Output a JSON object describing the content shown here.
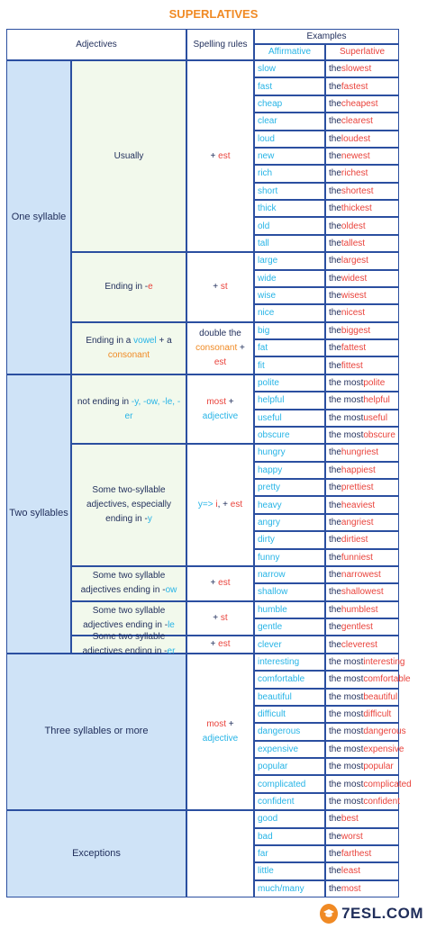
{
  "title": "SUPERLATIVES",
  "headers": {
    "adjectives": "Adjectives",
    "spelling_rules": "Spelling rules",
    "examples": "Examples",
    "affirmative": "Affirmative",
    "superlative": "Superlative"
  },
  "colors": {
    "orange": "#f08a24",
    "red": "#e9433c",
    "blue": "#27b4e6",
    "navy": "#1f2d5a",
    "border": "#2b4fa0",
    "left_col": "#cfe3f7",
    "rule_col": "#f2f9ec"
  },
  "groups": [
    {
      "name": "One syllable",
      "rows": [
        {
          "desc": [
            {
              "t": "Usually",
              "c": "dark"
            }
          ],
          "rule": [
            {
              "t": "+ ",
              "c": "dark"
            },
            {
              "t": "est",
              "c": "red"
            }
          ],
          "examples": [
            {
              "aff": "slow",
              "pre": "the ",
              "base": "slow",
              "suf": "est"
            },
            {
              "aff": "fast",
              "pre": "the ",
              "base": "fast",
              "suf": "est"
            },
            {
              "aff": "cheap",
              "pre": "the ",
              "base": "cheap",
              "suf": "est"
            },
            {
              "aff": "clear",
              "pre": "the ",
              "base": "clear",
              "suf": "est"
            },
            {
              "aff": "loud",
              "pre": "the ",
              "base": "loud",
              "suf": "est"
            },
            {
              "aff": "new",
              "pre": "the ",
              "base": "new",
              "suf": "est"
            },
            {
              "aff": "rich",
              "pre": "the ",
              "base": "rich",
              "suf": "est"
            },
            {
              "aff": "short",
              "pre": "the ",
              "base": "short",
              "suf": "est"
            },
            {
              "aff": "thick",
              "pre": "the ",
              "base": "thick",
              "suf": "est"
            },
            {
              "aff": "old",
              "pre": "the ",
              "base": "old",
              "suf": "est"
            },
            {
              "aff": "tall",
              "pre": "the ",
              "base": "tall",
              "suf": "est"
            }
          ]
        },
        {
          "desc": [
            {
              "t": "Ending in -",
              "c": "dark"
            },
            {
              "t": "e",
              "c": "red"
            }
          ],
          "rule": [
            {
              "t": "+ ",
              "c": "dark"
            },
            {
              "t": "st",
              "c": "red"
            }
          ],
          "examples": [
            {
              "aff": "large",
              "pre": "the ",
              "base": "large",
              "suf": "st"
            },
            {
              "aff": "wide",
              "pre": "the ",
              "base": "wide",
              "suf": "st"
            },
            {
              "aff": "wise",
              "pre": "the ",
              "base": "wise",
              "suf": "st"
            },
            {
              "aff": "nice",
              "pre": "the ",
              "base": "nice",
              "suf": "st"
            }
          ]
        },
        {
          "desc": [
            {
              "t": "Ending in a ",
              "c": "dark"
            },
            {
              "t": "vowel",
              "c": "blue"
            },
            {
              "t": " + a ",
              "c": "dark"
            },
            {
              "t": "consonant",
              "c": "orange"
            }
          ],
          "rule": [
            {
              "t": "double the ",
              "c": "dark"
            },
            {
              "t": "consonant",
              "c": "orange"
            },
            {
              "t": " + ",
              "c": "dark"
            },
            {
              "t": "est",
              "c": "red"
            }
          ],
          "examples": [
            {
              "aff": "big",
              "pre": "the ",
              "base": "big",
              "suf": "gest"
            },
            {
              "aff": "fat",
              "pre": "the ",
              "base": "fat",
              "suf": "test"
            },
            {
              "aff": "fit",
              "pre": "the ",
              "base": "fit",
              "suf": "test"
            }
          ]
        }
      ]
    },
    {
      "name": "Two syllables",
      "rows": [
        {
          "desc": [
            {
              "t": "not ending in ",
              "c": "dark"
            },
            {
              "t": "-y, -ow, -le, -er",
              "c": "blue"
            }
          ],
          "rule": [
            {
              "t": "most",
              "c": "red"
            },
            {
              "t": " + ",
              "c": "dark"
            },
            {
              "t": "adjective",
              "c": "blue"
            }
          ],
          "examples": [
            {
              "aff": "polite",
              "pre": "the most ",
              "base": "polite",
              "suf": ""
            },
            {
              "aff": "helpful",
              "pre": "the most ",
              "base": "helpful",
              "suf": ""
            },
            {
              "aff": "useful",
              "pre": "the most ",
              "base": "useful",
              "suf": ""
            },
            {
              "aff": "obscure",
              "pre": "the most ",
              "base": "obscure",
              "suf": ""
            }
          ]
        },
        {
          "desc": [
            {
              "t": "Some two-syllable adjectives, especially ending in -",
              "c": "dark"
            },
            {
              "t": "y",
              "c": "blue"
            }
          ],
          "rule": [
            {
              "t": "y=> ",
              "c": "blue"
            },
            {
              "t": "i",
              "c": "red"
            },
            {
              "t": ", + ",
              "c": "dark"
            },
            {
              "t": "est",
              "c": "red"
            }
          ],
          "examples": [
            {
              "aff": "hungry",
              "pre": "the ",
              "base": "hungr",
              "suf": "iest"
            },
            {
              "aff": "happy",
              "pre": "the ",
              "base": "happ",
              "suf": "iest"
            },
            {
              "aff": "pretty",
              "pre": "the ",
              "base": "prett",
              "suf": "iest"
            },
            {
              "aff": "heavy",
              "pre": "the ",
              "base": "heav",
              "suf": "iest"
            },
            {
              "aff": "angry",
              "pre": "the ",
              "base": "angr",
              "suf": "iest"
            },
            {
              "aff": "dirty",
              "pre": "the ",
              "base": "dirt",
              "suf": "iest"
            },
            {
              "aff": "funny",
              "pre": "the ",
              "base": "funn",
              "suf": "iest"
            }
          ]
        },
        {
          "desc": [
            {
              "t": "Some two syllable adjectives ending in -",
              "c": "dark"
            },
            {
              "t": "ow",
              "c": "blue"
            }
          ],
          "rule": [
            {
              "t": "+ ",
              "c": "dark"
            },
            {
              "t": "est",
              "c": "red"
            }
          ],
          "examples": [
            {
              "aff": "narrow",
              "pre": "the ",
              "base": "narrow",
              "suf": "est"
            },
            {
              "aff": "shallow",
              "pre": "the ",
              "base": "shallow",
              "suf": "est"
            }
          ]
        },
        {
          "desc": [
            {
              "t": "Some two syllable adjectives ending in -",
              "c": "dark"
            },
            {
              "t": "le",
              "c": "blue"
            }
          ],
          "rule": [
            {
              "t": "+ ",
              "c": "dark"
            },
            {
              "t": "st",
              "c": "red"
            }
          ],
          "examples": [
            {
              "aff": "humble",
              "pre": "the ",
              "base": "humble",
              "suf": "st"
            },
            {
              "aff": "gentle",
              "pre": "the ",
              "base": "gentle",
              "suf": "st"
            }
          ]
        },
        {
          "desc": [
            {
              "t": "Some two syllable adjectives ending in -",
              "c": "dark"
            },
            {
              "t": "er",
              "c": "blue"
            }
          ],
          "rule": [
            {
              "t": "+ ",
              "c": "dark"
            },
            {
              "t": "est",
              "c": "red"
            }
          ],
          "examples": [
            {
              "aff": "clever",
              "pre": "the ",
              "base": "clever",
              "suf": "est"
            }
          ]
        }
      ]
    },
    {
      "name": "Three syllables or more",
      "rows": [
        {
          "desc": [],
          "rule": [
            {
              "t": "most",
              "c": "red"
            },
            {
              "t": " + ",
              "c": "dark"
            },
            {
              "t": "adjective",
              "c": "blue"
            }
          ],
          "examples": [
            {
              "aff": "interesting",
              "pre": "the most ",
              "base": "interesting",
              "suf": ""
            },
            {
              "aff": "comfortable",
              "pre": "the most ",
              "base": "comfortable",
              "suf": ""
            },
            {
              "aff": "beautiful",
              "pre": "the most ",
              "base": "beautiful",
              "suf": ""
            },
            {
              "aff": "difficult",
              "pre": "the most ",
              "base": "difficult",
              "suf": ""
            },
            {
              "aff": "dangerous",
              "pre": "the most ",
              "base": "dangerous",
              "suf": ""
            },
            {
              "aff": "expensive",
              "pre": "the most ",
              "base": "expensive",
              "suf": ""
            },
            {
              "aff": "popular",
              "pre": "the most ",
              "base": "popular",
              "suf": ""
            },
            {
              "aff": "complicated",
              "pre": "the most ",
              "base": "complicated",
              "suf": ""
            },
            {
              "aff": "confident",
              "pre": "the most ",
              "base": "confident",
              "suf": ""
            }
          ]
        }
      ]
    },
    {
      "name": "Exceptions",
      "rows": [
        {
          "desc": [],
          "rule": [],
          "examples": [
            {
              "aff": "good",
              "pre": "the ",
              "base": "",
              "suf": "best"
            },
            {
              "aff": "bad",
              "pre": "the ",
              "base": "",
              "suf": "worst"
            },
            {
              "aff": "far",
              "pre": "the ",
              "base": "",
              "suf": "farthest"
            },
            {
              "aff": "little",
              "pre": "the ",
              "base": "",
              "suf": "least"
            },
            {
              "aff": "much/many",
              "pre": "the ",
              "base": "",
              "suf": "most"
            }
          ]
        }
      ]
    }
  ],
  "logo": {
    "text": "7ESL.COM",
    "icon": "graduation-cap-icon"
  }
}
